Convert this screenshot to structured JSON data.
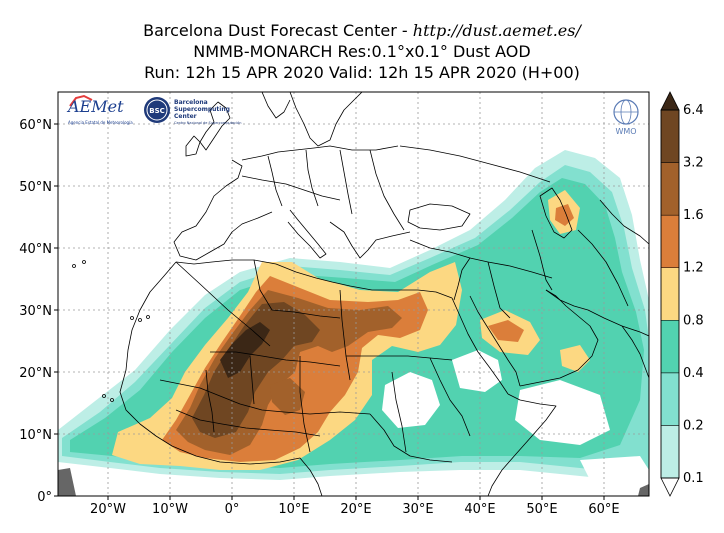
{
  "header": {
    "line1_prefix": "Barcelona Dust Forecast Center - ",
    "line1_url": "http://dust.aemet.es/",
    "line2": "NMMB-MONARCH   Res:0.1°x0.1°   Dust AOD",
    "line3": "Run: 12h 15 APR 2020   Valid: 12h 15 APR 2020 (H+00)"
  },
  "logos": {
    "aemet": {
      "text": "AEMet",
      "subtitle": "Agencia Estatal de Meteorología"
    },
    "bsc": {
      "badge": "BSC",
      "line1": "Barcelona",
      "line2": "Supercomputing",
      "line3": "Center",
      "line4": "Centro Nacional de Supercomputación"
    },
    "wmo": {
      "text": "WMO"
    }
  },
  "axes": {
    "lat_ticks": [
      "60°N",
      "50°N",
      "40°N",
      "30°N",
      "20°N",
      "10°N",
      "0°"
    ],
    "lon_ticks": [
      "20°W",
      "10°W",
      "0°",
      "10°E",
      "20°E",
      "30°E",
      "40°E",
      "50°E",
      "60°E"
    ]
  },
  "colorbar": {
    "labels": [
      "0.1",
      "0.2",
      "0.4",
      "0.8",
      "1.2",
      "1.6",
      "3.2",
      "6.4"
    ],
    "colors": [
      "#bdeee6",
      "#82e0cf",
      "#52d2b0",
      "#fcd882",
      "#db7e3a",
      "#a2612b",
      "#6f4622",
      "#3b2716"
    ]
  },
  "colors": {
    "land": "#ffffff",
    "sea": "#ffffff",
    "border": "#000000",
    "grid": "#9a9a9a",
    "nodata": "#666666"
  }
}
